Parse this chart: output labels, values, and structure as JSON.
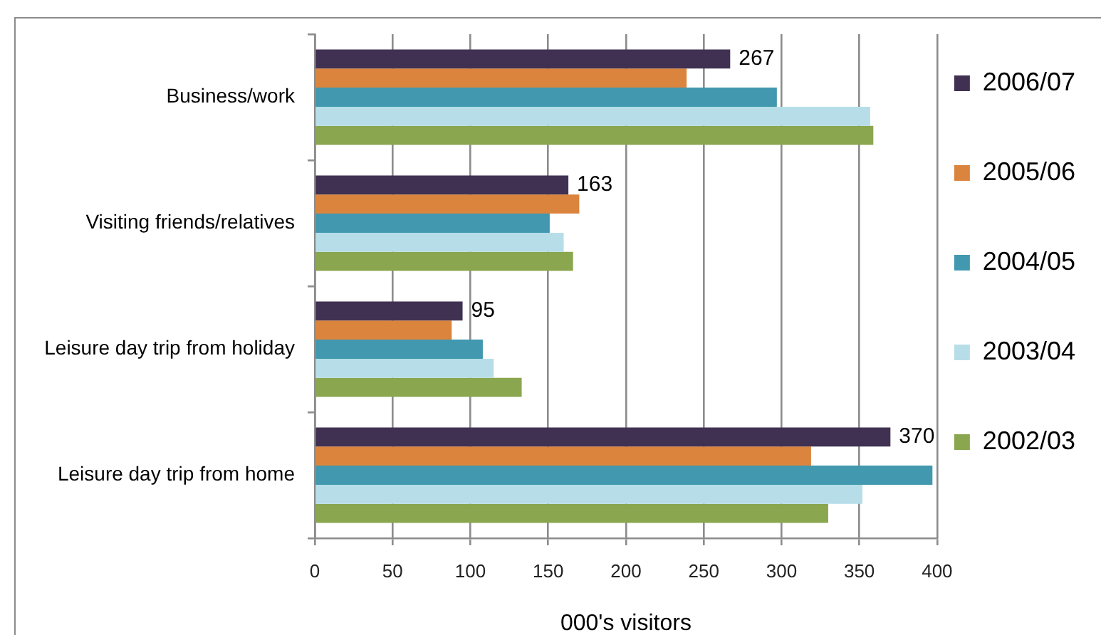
{
  "chart_data": {
    "type": "bar",
    "orientation": "horizontal",
    "categories": [
      "Business/work",
      "Visiting friends/relatives",
      "Leisure day trip from holiday",
      "Leisure day trip from home"
    ],
    "series": [
      {
        "name": "2006/07",
        "color": "#403152",
        "values": [
          267,
          163,
          95,
          370
        ],
        "value_labels": [
          "267",
          "163",
          "95",
          "370"
        ]
      },
      {
        "name": "2005/06",
        "color": "#db843d",
        "values": [
          239,
          170,
          88,
          319
        ]
      },
      {
        "name": "2004/05",
        "color": "#4198af",
        "values": [
          297,
          151,
          108,
          397
        ]
      },
      {
        "name": "2003/04",
        "color": "#b7dee8",
        "values": [
          357,
          160,
          115,
          352
        ]
      },
      {
        "name": "2002/03",
        "color": "#8aa64f",
        "values": [
          359,
          166,
          133,
          330
        ]
      }
    ],
    "xlabel": "000's visitors",
    "xlim": [
      0,
      400
    ],
    "xticks": [
      0,
      50,
      100,
      150,
      200,
      250,
      300,
      350,
      400
    ],
    "grid": "x",
    "legend": "right"
  }
}
